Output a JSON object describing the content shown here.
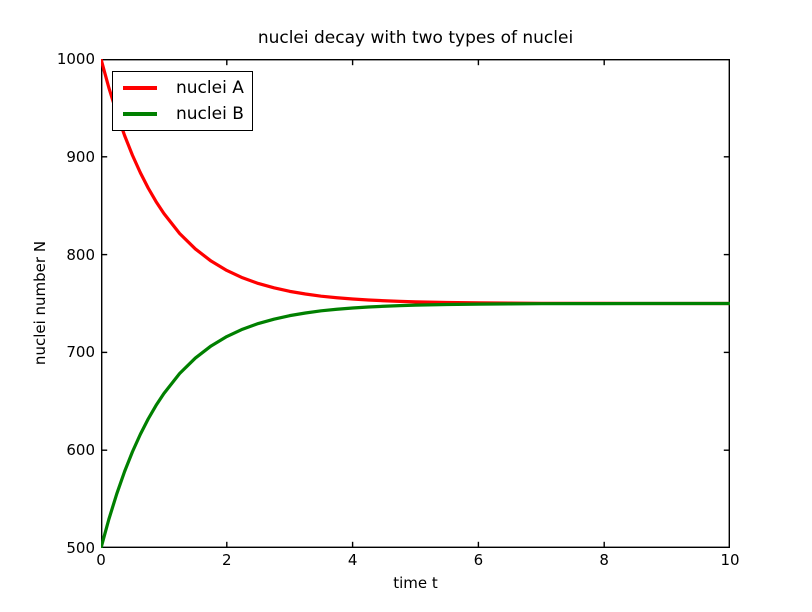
{
  "figure": {
    "background": "#ffffff",
    "axis_color": "#000000",
    "text_color": "#000000"
  },
  "chart_data": {
    "type": "line",
    "title": "nuclei decay with two types of nuclei",
    "xlabel": "time t",
    "ylabel": "nuclei number N",
    "xlim": [
      0,
      10
    ],
    "ylim": [
      500,
      1000
    ],
    "xticks": [
      0,
      2,
      4,
      6,
      8,
      10
    ],
    "yticks": [
      500,
      600,
      700,
      800,
      900,
      1000
    ],
    "grid": false,
    "legend": {
      "position": "upper-left",
      "entries": [
        "nuclei A",
        "nuclei B"
      ]
    },
    "x": [
      0,
      0.125,
      0.25,
      0.375,
      0.5,
      0.625,
      0.75,
      0.875,
      1,
      1.25,
      1.5,
      1.75,
      2,
      2.25,
      2.5,
      2.75,
      3,
      3.25,
      3.5,
      3.75,
      4,
      4.25,
      4.5,
      4.75,
      5,
      5.5,
      6,
      6.5,
      7,
      7.5,
      8,
      8.5,
      9,
      9.5,
      10
    ],
    "series": [
      {
        "name": "nuclei A",
        "color": "#ff0000",
        "values": [
          1000,
          970.6,
          944.7,
          921.8,
          901.6,
          883.8,
          868.1,
          854.2,
          842.0,
          821.6,
          805.8,
          793.4,
          783.8,
          776.3,
          770.5,
          766.0,
          762.4,
          759.7,
          757.5,
          755.9,
          754.6,
          753.6,
          752.8,
          752.2,
          751.7,
          751.0,
          750.6,
          750.4,
          750.2,
          750.1,
          750.1,
          750.0,
          750.0,
          750.0,
          750.0
        ]
      },
      {
        "name": "nuclei B",
        "color": "#008000",
        "values": [
          500,
          529.4,
          555.3,
          578.2,
          598.4,
          616.2,
          631.9,
          645.8,
          658.0,
          678.4,
          694.2,
          706.6,
          716.2,
          723.7,
          729.5,
          734.0,
          737.6,
          740.3,
          742.5,
          744.1,
          745.4,
          746.4,
          747.2,
          747.8,
          748.3,
          749.0,
          749.4,
          749.6,
          749.8,
          749.9,
          749.9,
          750.0,
          750.0,
          750.0,
          750.0
        ]
      }
    ]
  }
}
